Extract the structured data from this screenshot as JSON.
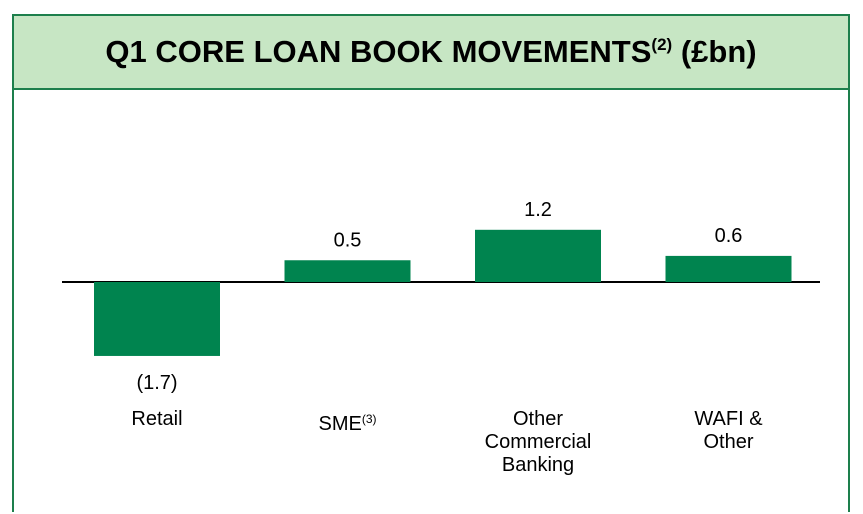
{
  "chart_data": {
    "type": "bar",
    "title": "Q1 CORE LOAN BOOK MOVEMENTS",
    "title_note": "(2)",
    "unit": "(£bn)",
    "categories": [
      "Retail",
      "SME",
      "Other Commercial Banking",
      "WAFI & Other"
    ],
    "category_notes": [
      null,
      "(3)",
      null,
      null
    ],
    "values": [
      -1.7,
      0.5,
      1.2,
      0.6
    ],
    "value_labels": [
      "(1.7)",
      "0.5",
      "1.2",
      "0.6"
    ],
    "color": "#00844f"
  }
}
